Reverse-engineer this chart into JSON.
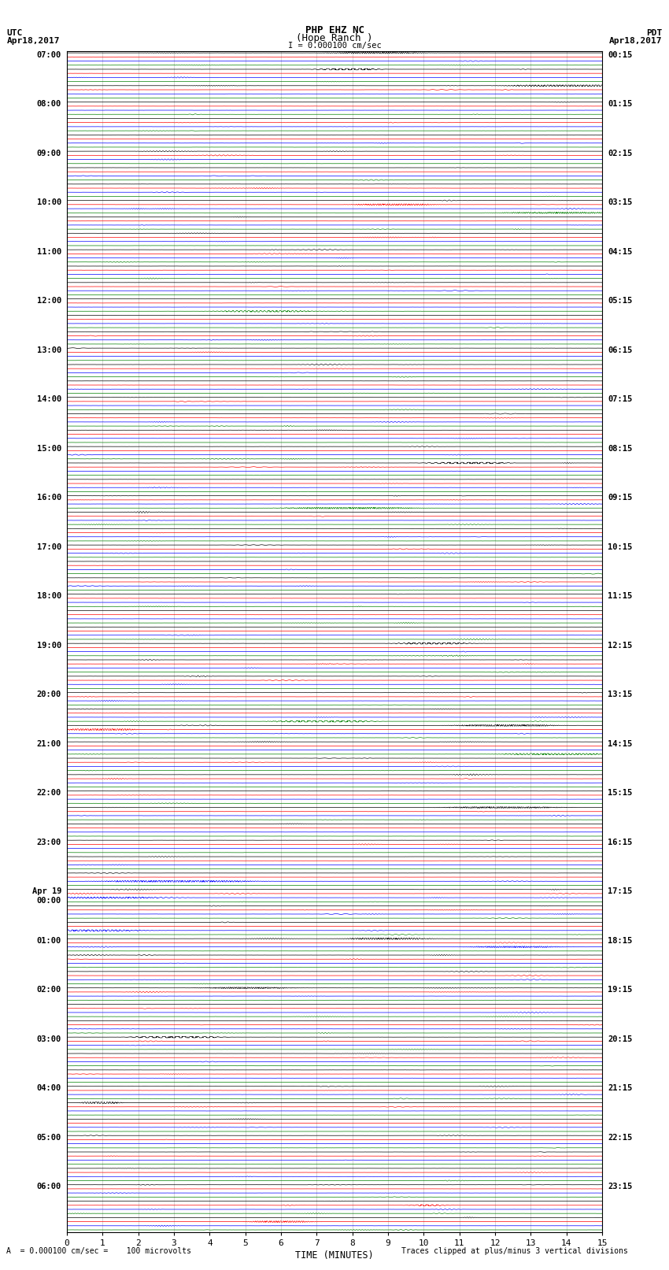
{
  "title_line1": "PHP EHZ NC",
  "title_line2": "(Hope Ranch )",
  "title_scale": "I = 0.000100 cm/sec",
  "left_header_line1": "UTC",
  "left_header_line2": "Apr18,2017",
  "right_header_line1": "PDT",
  "right_header_line2": "Apr18,2017",
  "utc_row_labels": {
    "0": "07:00",
    "3": "08:00",
    "6": "09:00",
    "9": "10:00",
    "12": "11:00",
    "15": "12:00",
    "18": "13:00",
    "21": "14:00",
    "24": "15:00",
    "27": "16:00",
    "30": "17:00",
    "33": "18:00",
    "36": "19:00",
    "39": "20:00",
    "42": "21:00",
    "45": "22:00",
    "48": "23:00",
    "51": "Apr 19\n00:00",
    "54": "01:00",
    "57": "02:00",
    "60": "03:00",
    "63": "04:00",
    "66": "05:00",
    "69": "06:00"
  },
  "pdt_row_labels": {
    "0": "00:15",
    "3": "01:15",
    "6": "02:15",
    "9": "03:15",
    "12": "04:15",
    "15": "05:15",
    "18": "06:15",
    "21": "07:15",
    "24": "08:15",
    "27": "09:15",
    "30": "10:15",
    "33": "11:15",
    "36": "12:15",
    "39": "13:15",
    "42": "14:15",
    "45": "15:15",
    "48": "16:15",
    "51": "17:15",
    "54": "18:15",
    "57": "19:15",
    "60": "20:15",
    "63": "21:15",
    "66": "22:15",
    "69": "23:15"
  },
  "trace_colors": [
    "black",
    "red",
    "blue",
    "green"
  ],
  "background_color": "white",
  "xlabel": "TIME (MINUTES)",
  "xlabel2": "A  = 0.000100 cm/sec =    100 microvolts",
  "xlabel3": "Traces clipped at plus/minus 3 vertical divisions",
  "xlim": [
    0,
    15
  ],
  "xticks": [
    0,
    1,
    2,
    3,
    4,
    5,
    6,
    7,
    8,
    9,
    10,
    11,
    12,
    13,
    14,
    15
  ],
  "num_rows": 72,
  "traces_per_row": 4,
  "base_noise": 0.018,
  "seed": 42
}
